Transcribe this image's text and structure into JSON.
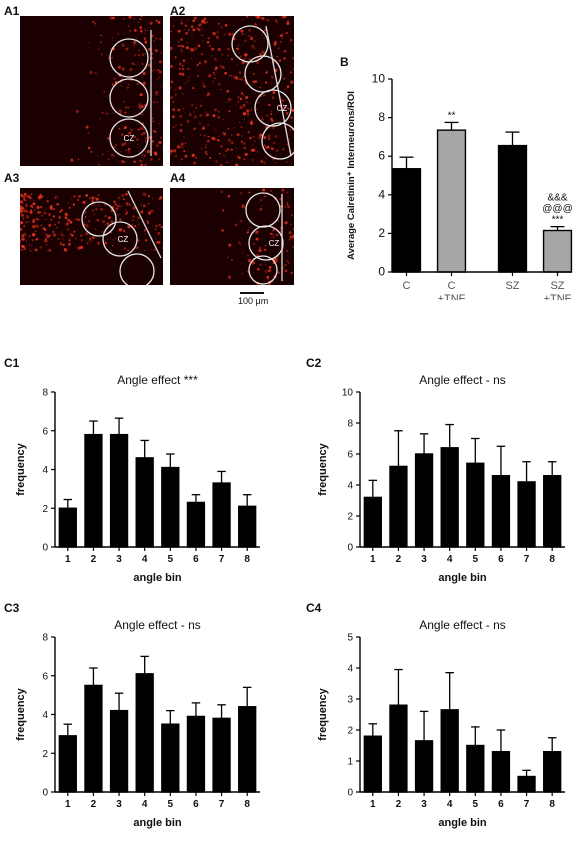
{
  "panels": {
    "A1": "A1",
    "A2": "A2",
    "A3": "A3",
    "A4": "A4",
    "B": "B",
    "C1": "C1",
    "C2": "C2",
    "C3": "C3",
    "C4": "C4"
  },
  "micrographs": {
    "A1": {
      "roi_label": "CZ"
    },
    "A2": {
      "roi_label": "CZ"
    },
    "A3": {
      "roi_label": "CZ"
    },
    "A4": {
      "roi_label": "CZ"
    }
  },
  "scale_bar": "100 μm",
  "colors": {
    "black_bar": "#000000",
    "gray_bar": "#a6a6a6",
    "tissue_red": "#e0301e"
  },
  "chart_data": [
    {
      "id": "B",
      "type": "bar",
      "ylabel": "Average Calretinin⁺ Interneurons/ROI",
      "ylim": [
        0,
        10
      ],
      "yticks": [
        0,
        2,
        4,
        6,
        8,
        10
      ],
      "categories": [
        {
          "line1": "C",
          "line2": ""
        },
        {
          "line1": "C",
          "line2": "+TNF"
        },
        {
          "line1": "SZ",
          "line2": ""
        },
        {
          "line1": "SZ",
          "line2": "+TNF"
        }
      ],
      "values": [
        5.35,
        7.35,
        6.55,
        2.15
      ],
      "errors": [
        0.6,
        0.4,
        0.7,
        0.2
      ],
      "bar_colors": [
        "#000000",
        "#a6a6a6",
        "#000000",
        "#a6a6a6"
      ],
      "annotations": [
        [],
        [
          "**"
        ],
        [],
        [
          "&&&",
          "@@@",
          "***"
        ]
      ]
    },
    {
      "id": "C1",
      "type": "bar",
      "title": "Angle effect ***",
      "xlabel": "angle bin",
      "ylabel": "frequency",
      "ylim": [
        0,
        8
      ],
      "yticks": [
        0,
        2,
        4,
        6,
        8
      ],
      "categories": [
        "1",
        "2",
        "3",
        "4",
        "5",
        "6",
        "7",
        "8"
      ],
      "values": [
        2.0,
        5.8,
        5.8,
        4.6,
        4.1,
        2.3,
        3.3,
        2.1
      ],
      "errors": [
        0.45,
        0.7,
        0.85,
        0.9,
        0.7,
        0.4,
        0.6,
        0.6
      ]
    },
    {
      "id": "C2",
      "type": "bar",
      "title": "Angle effect - ns",
      "xlabel": "angle bin",
      "ylabel": "frequency",
      "ylim": [
        0,
        10
      ],
      "yticks": [
        0,
        2,
        4,
        6,
        8,
        10
      ],
      "categories": [
        "1",
        "2",
        "3",
        "4",
        "5",
        "6",
        "7",
        "8"
      ],
      "values": [
        3.2,
        5.2,
        6.0,
        6.4,
        5.4,
        4.6,
        4.2,
        4.6
      ],
      "errors": [
        1.1,
        2.3,
        1.3,
        1.5,
        1.6,
        1.9,
        1.3,
        0.9
      ]
    },
    {
      "id": "C3",
      "type": "bar",
      "title": "Angle effect  - ns",
      "xlabel": "angle bin",
      "ylabel": "frequency",
      "ylim": [
        0,
        8
      ],
      "yticks": [
        0,
        2,
        4,
        6,
        8
      ],
      "categories": [
        "1",
        "2",
        "3",
        "4",
        "5",
        "6",
        "7",
        "8"
      ],
      "values": [
        2.9,
        5.5,
        4.2,
        6.1,
        3.5,
        3.9,
        3.8,
        4.4
      ],
      "errors": [
        0.6,
        0.9,
        0.9,
        0.9,
        0.7,
        0.7,
        0.7,
        1.0
      ]
    },
    {
      "id": "C4",
      "type": "bar",
      "title": "Angle effect - ns",
      "xlabel": "angle bin",
      "ylabel": "frequency",
      "ylim": [
        0,
        5
      ],
      "yticks": [
        0,
        1,
        2,
        3,
        4,
        5
      ],
      "categories": [
        "1",
        "2",
        "3",
        "4",
        "5",
        "6",
        "7",
        "8"
      ],
      "values": [
        1.8,
        2.8,
        1.65,
        2.65,
        1.5,
        1.3,
        0.5,
        1.3
      ],
      "errors": [
        0.4,
        1.15,
        0.95,
        1.2,
        0.6,
        0.7,
        0.2,
        0.45
      ]
    }
  ]
}
